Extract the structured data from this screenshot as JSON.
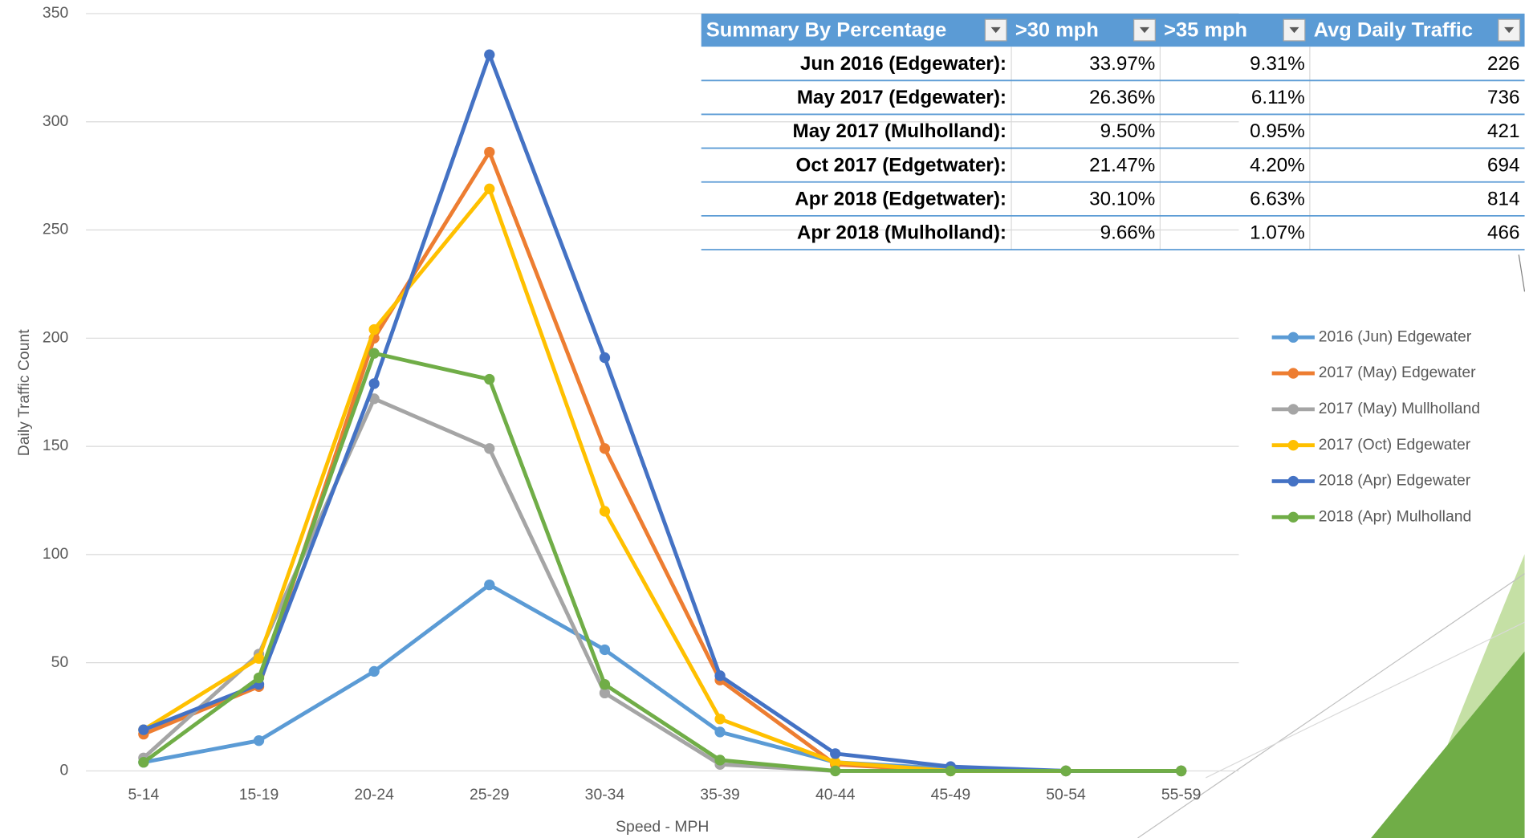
{
  "chart_data": {
    "type": "line",
    "x_label": "Speed - MPH",
    "y_label": "Daily Traffic Count",
    "categories": [
      "5-14",
      "15-19",
      "20-24",
      "25-29",
      "30-34",
      "35-39",
      "40-44",
      "45-49",
      "50-54",
      "55-59"
    ],
    "ylim": [
      0,
      350
    ],
    "yticks": [
      0,
      50,
      100,
      150,
      200,
      250,
      300,
      350
    ],
    "grid": true,
    "legend": "right",
    "series": [
      {
        "name": "2016 (Jun) Edgewater",
        "color": "#5b9bd5",
        "values": [
          4,
          14,
          46,
          86,
          56,
          18,
          4,
          1,
          0,
          0
        ]
      },
      {
        "name": "2017 (May) Edgewater",
        "color": "#ed7d31",
        "values": [
          17,
          39,
          200,
          286,
          149,
          42,
          3,
          0,
          0,
          0
        ]
      },
      {
        "name": "2017 (May) Mullholland",
        "color": "#a5a5a5",
        "values": [
          6,
          54,
          172,
          149,
          36,
          3,
          0,
          0,
          0,
          0
        ]
      },
      {
        "name": "2017 (Oct) Edgewater",
        "color": "#ffc000",
        "values": [
          19,
          52,
          204,
          269,
          120,
          24,
          4,
          0,
          0,
          0
        ]
      },
      {
        "name": "2018 (Apr) Edgewater",
        "color": "#4472c4",
        "values": [
          19,
          40,
          179,
          331,
          191,
          44,
          8,
          2,
          0,
          0
        ]
      },
      {
        "name": "2018 (Apr) Mulholland",
        "color": "#70ad47",
        "values": [
          4,
          43,
          193,
          181,
          40,
          5,
          0,
          0,
          0,
          0
        ]
      }
    ]
  },
  "table": {
    "header": [
      "Summary By Percentage",
      ">30 mph",
      ">35 mph",
      "Avg Daily Traffic"
    ],
    "rows": [
      [
        "Jun 2016 (Edgewater):",
        "33.97%",
        "9.31%",
        226
      ],
      [
        "May 2017 (Edgewater):",
        "26.36%",
        "6.11%",
        736
      ],
      [
        "May 2017 (Mulholland):",
        "9.50%",
        "0.95%",
        421
      ],
      [
        "Oct 2017 (Edgetwater):",
        "21.47%",
        "4.20%",
        694
      ],
      [
        "Apr 2018 (Edgetwater):",
        "30.10%",
        "6.63%",
        814
      ],
      [
        "Apr 2018 (Mulholland):",
        "9.66%",
        "1.07%",
        466
      ]
    ]
  }
}
